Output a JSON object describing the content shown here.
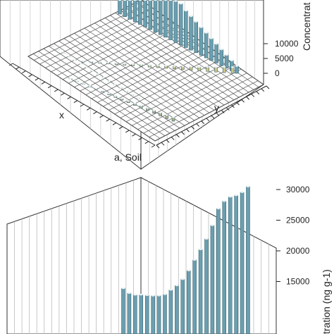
{
  "chart_data": [
    {
      "type": "bar",
      "panel_label": "a, Soil",
      "xlabel": "x",
      "ylabel": "y",
      "zlabel": "Concentrat",
      "zlim": [
        0,
        14000
      ],
      "z_ticks": [
        "0",
        "5000",
        "10000"
      ],
      "grid": true,
      "series": [
        {
          "color": "#6a9fb0",
          "values": [
            14000,
            14000,
            14000,
            14000,
            14000,
            14000,
            14000,
            14000,
            14000,
            14000,
            14000,
            14000,
            14000,
            12500,
            11500,
            10500,
            9500,
            8500,
            7500,
            6500,
            5500,
            4500,
            3500,
            2500
          ]
        },
        {
          "color": "#c8c48a",
          "values": [
            300,
            350,
            400,
            450,
            500,
            550,
            600,
            650,
            700,
            800,
            900,
            1000,
            1100,
            1200,
            1300,
            1500,
            1700,
            1900,
            2100
          ]
        },
        {
          "color": "#a8b08a",
          "values": [
            150,
            200,
            250,
            300,
            350,
            400,
            450,
            500,
            550,
            600,
            700,
            800,
            900,
            1000,
            1100,
            1200,
            1400
          ]
        },
        {
          "color": "#3b4fa0",
          "values": [
            80,
            80,
            90,
            90,
            100,
            100,
            110,
            110,
            120,
            120,
            130,
            130,
            140,
            140,
            150,
            150
          ]
        }
      ]
    },
    {
      "type": "bar",
      "zlabel": "tration (ng g-1)",
      "zlim": [
        12000,
        32000
      ],
      "z_ticks": [
        "15000",
        "20000",
        "25000",
        "30000"
      ],
      "grid": true,
      "series": [
        {
          "color": "#6a9fb0",
          "values": [
            18500,
            17500,
            17000,
            16800,
            16500,
            16200,
            16000,
            16000,
            16500,
            17000,
            17800,
            19000,
            20500,
            22000,
            23500,
            25500,
            28000,
            29000,
            29500,
            29500,
            29800,
            30500
          ]
        }
      ]
    }
  ]
}
